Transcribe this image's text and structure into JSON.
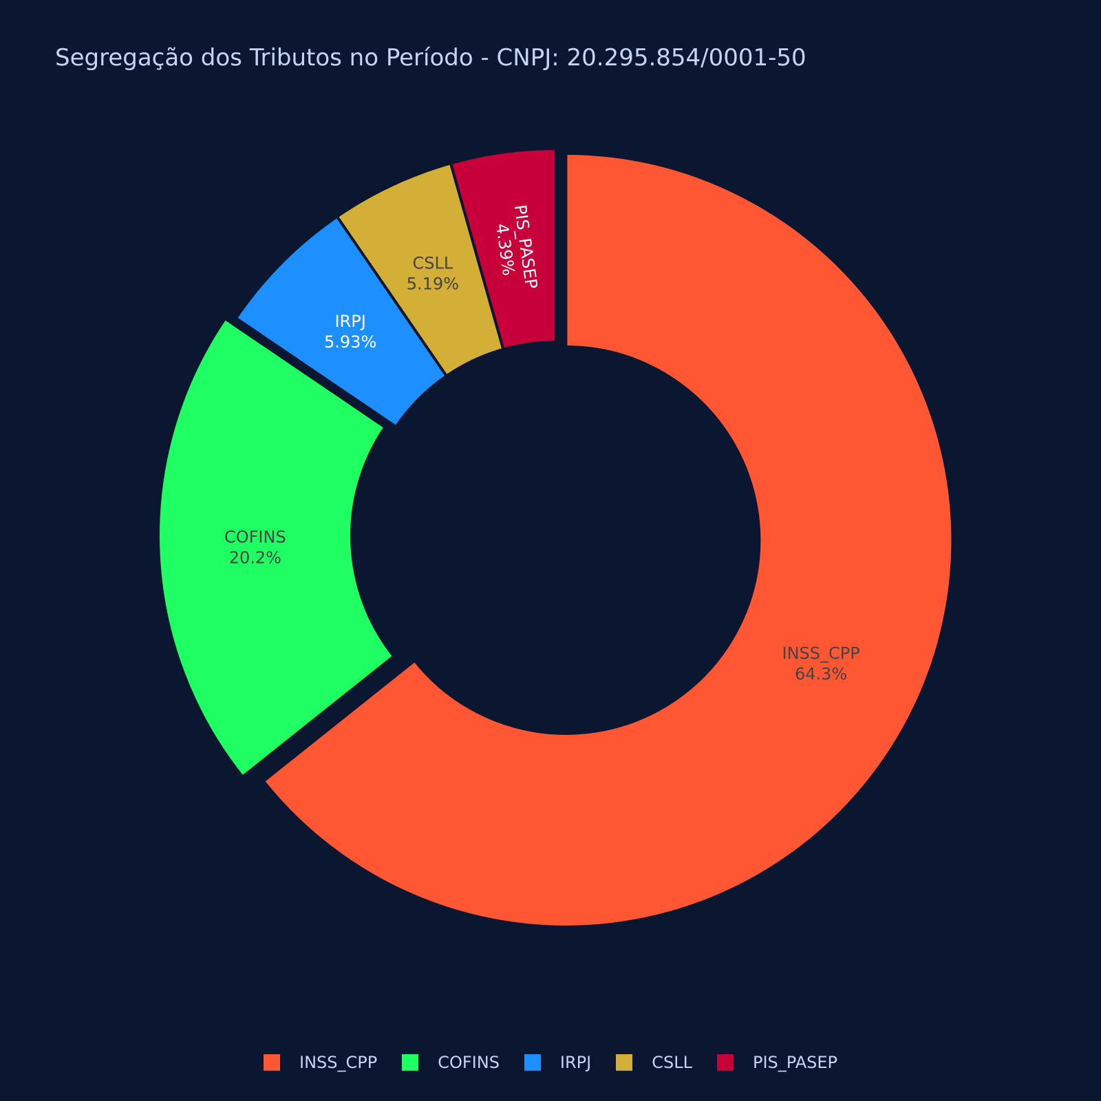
{
  "chart_data": {
    "type": "pie",
    "subtype": "donut",
    "title": "Segregação dos Tributos no Período - CNPJ: 20.295.854/0001-50",
    "background": "#0b1730",
    "legend_position": "bottom-center",
    "slices": [
      {
        "label": "INSS_CPP",
        "percent_label": "64.3%",
        "value": 64.3,
        "color": "#ff5733",
        "text_color": "#444444",
        "pulled": true
      },
      {
        "label": "COFINS",
        "percent_label": "20.2%",
        "value": 20.2,
        "color": "#1fff62",
        "text_color": "#444444",
        "pulled": true
      },
      {
        "label": "IRPJ",
        "percent_label": "5.93%",
        "value": 5.93,
        "color": "#1e8fff",
        "text_color": "#ffffff",
        "pulled": false
      },
      {
        "label": "CSLL",
        "percent_label": "5.19%",
        "value": 5.19,
        "color": "#d4af37",
        "text_color": "#444444",
        "pulled": false
      },
      {
        "label": "PIS_PASEP",
        "percent_label": "4.39%",
        "value": 4.39,
        "color": "#c70039",
        "text_color": "#ffffff",
        "pulled": false
      }
    ]
  }
}
